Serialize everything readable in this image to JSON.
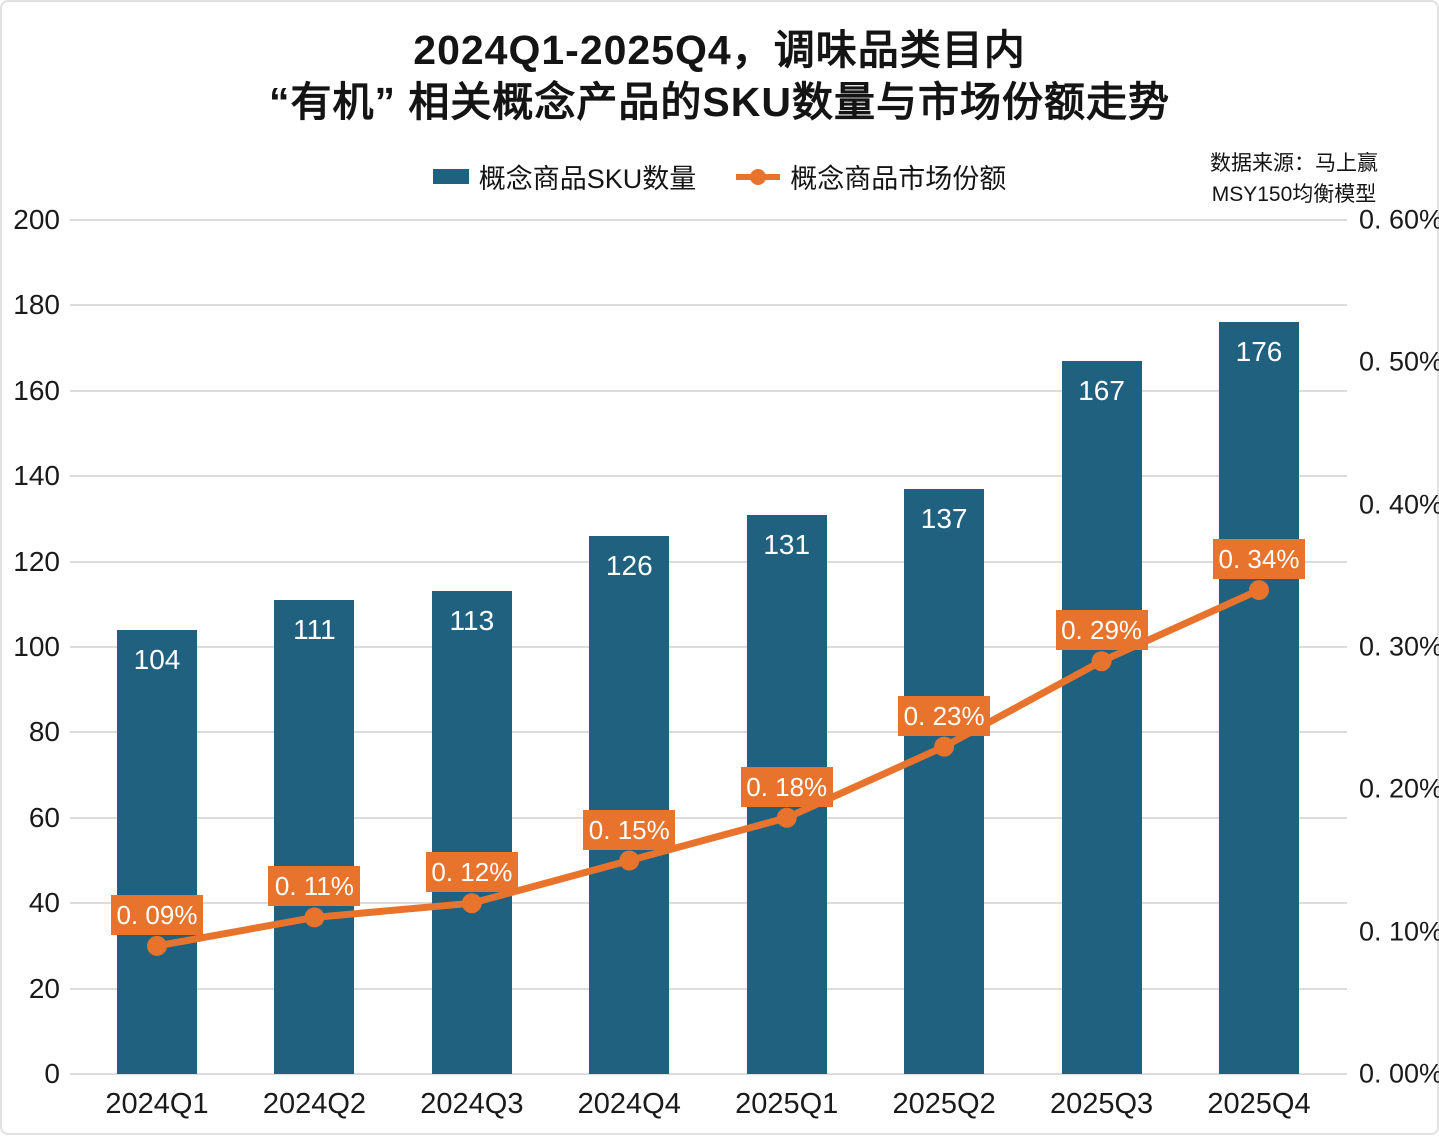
{
  "title": {
    "line1": "2024Q1-2025Q4，调味品类目内",
    "line2": "“有机” 相关概念产品的SKU数量与市场份额走势"
  },
  "source": {
    "line1": "数据来源：马上赢",
    "line2": "MSY150均衡模型"
  },
  "legend": {
    "bar_label": "概念商品SKU数量",
    "line_label": "概念商品市场份额"
  },
  "colors": {
    "bar": "#1F617F",
    "line": "#E8732C",
    "grid": "#DCDCDC",
    "text": "#141414",
    "label_text": "#FFFFFF"
  },
  "chart_data": {
    "type": "bar+line",
    "title": "2024Q1-2025Q4，调味品类目内 “有机” 相关概念产品的SKU数量与市场份额走势",
    "categories": [
      "2024Q1",
      "2024Q2",
      "2024Q3",
      "2024Q4",
      "2025Q1",
      "2025Q2",
      "2025Q3",
      "2025Q4"
    ],
    "series": [
      {
        "name": "概念商品SKU数量",
        "type": "bar",
        "axis": "left",
        "color": "#1F617F",
        "values": [
          104,
          111,
          113,
          126,
          131,
          137,
          167,
          176
        ],
        "labels": [
          "104",
          "111",
          "113",
          "126",
          "131",
          "137",
          "167",
          "176"
        ]
      },
      {
        "name": "概念商品市场份额",
        "type": "line",
        "axis": "right",
        "color": "#E8732C",
        "values": [
          0.09,
          0.11,
          0.12,
          0.15,
          0.18,
          0.23,
          0.29,
          0.34
        ],
        "labels": [
          "0. 09%",
          "0. 11%",
          "0. 12%",
          "0. 15%",
          "0. 18%",
          "0. 23%",
          "0. 29%",
          "0. 34%"
        ]
      }
    ],
    "left_axis": {
      "min": 0,
      "max": 200,
      "step": 20,
      "ticks": [
        "0",
        "20",
        "40",
        "60",
        "80",
        "100",
        "120",
        "140",
        "160",
        "180",
        "200"
      ]
    },
    "right_axis": {
      "min": 0,
      "max": 0.6,
      "step": 0.1,
      "ticks": [
        "0. 00%",
        "0. 10%",
        "0. 20%",
        "0. 30%",
        "0. 40%",
        "0. 50%",
        "0. 60%"
      ]
    },
    "grid": true,
    "legend_position": "top-center"
  }
}
